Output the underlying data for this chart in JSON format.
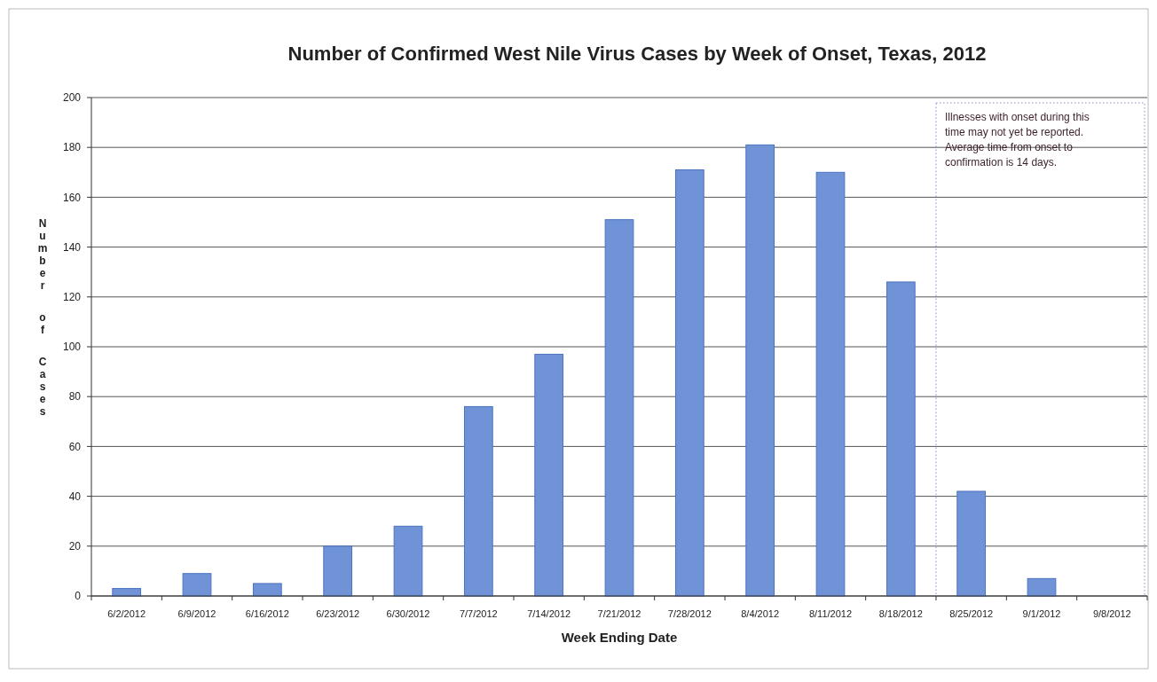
{
  "chart_data": {
    "type": "bar",
    "title": "Number of Confirmed West Nile Virus Cases by Week of Onset, Texas, 2012",
    "xlabel": "Week Ending Date",
    "ylabel": "Number of Cases",
    "categories": [
      "6/2/2012",
      "6/9/2012",
      "6/16/2012",
      "6/23/2012",
      "6/30/2012",
      "7/7/2012",
      "7/14/2012",
      "7/21/2012",
      "7/28/2012",
      "8/4/2012",
      "8/11/2012",
      "8/18/2012",
      "8/25/2012",
      "9/1/2012",
      "9/8/2012"
    ],
    "values": [
      3,
      9,
      5,
      20,
      28,
      76,
      97,
      151,
      171,
      181,
      170,
      126,
      42,
      7,
      0
    ],
    "color": "#6f93d6",
    "ylim": [
      0,
      200
    ],
    "yticks": [
      0,
      20,
      40,
      60,
      80,
      100,
      120,
      140,
      160,
      180,
      200
    ],
    "grid": "y",
    "annotations": [
      "Illnesses with onset during this time may not yet be reported. Average time from onset to confirmation is 14 days."
    ]
  }
}
